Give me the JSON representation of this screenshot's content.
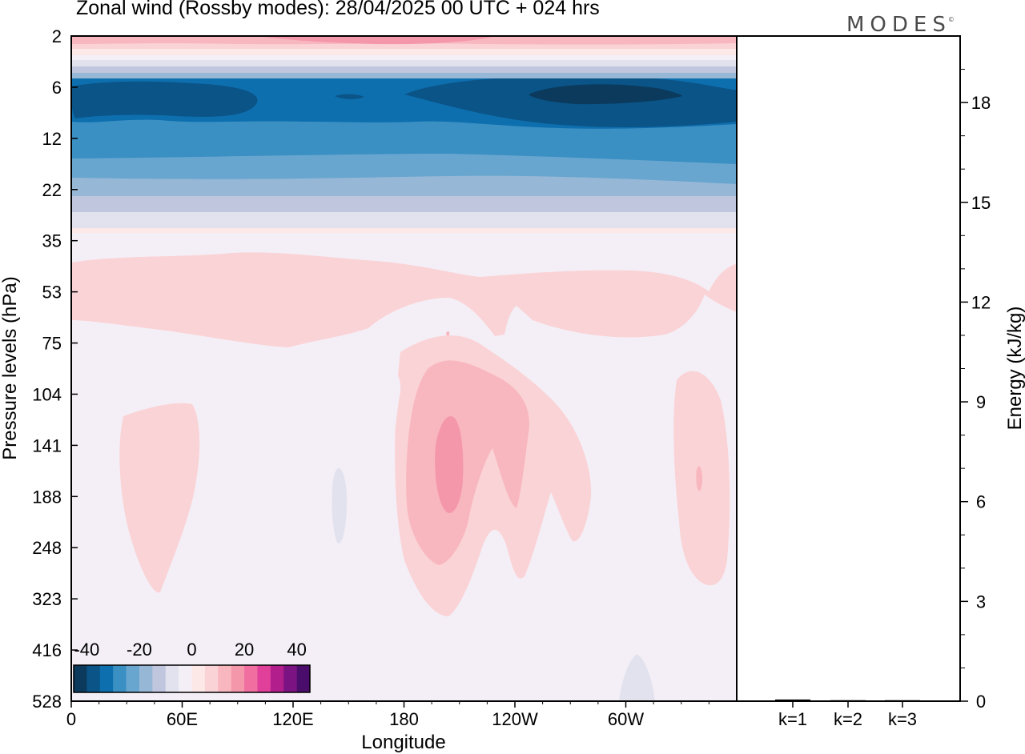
{
  "title": "Zonal wind (Rossby modes):  28/04/2025  00 UTC  + 024 hrs",
  "logo": "MODES",
  "logo_mark": "©",
  "chart_data": [
    {
      "type": "heatmap",
      "title": "Zonal wind (Rossby modes):  28/04/2025  00 UTC  + 024 hrs",
      "xlabel": "Longitude",
      "ylabel": "Pressure levels (hPa)",
      "x_ticks": [
        "0",
        "60E",
        "120E",
        "180",
        "120W",
        "60W"
      ],
      "y_ticks": [
        "2",
        "6",
        "12",
        "22",
        "35",
        "53",
        "75",
        "104",
        "141",
        "188",
        "248",
        "323",
        "416",
        "528"
      ],
      "colorbar": {
        "tick_labels": [
          "-40",
          "-20",
          "0",
          "20",
          "40"
        ],
        "range": [
          -45,
          45
        ],
        "interval": 5,
        "colors": [
          "#0b3a5c",
          "#0a5488",
          "#0e6fae",
          "#3a8fc3",
          "#68a6cf",
          "#97b7d6",
          "#c0c6de",
          "#e2e2ee",
          "#f4eff6",
          "#fde8e8",
          "#fad3d6",
          "#f8b7be",
          "#f597ab",
          "#f06fa0",
          "#e0409a",
          "#b21e8c",
          "#7c1382",
          "#4a0d6b"
        ]
      }
    },
    {
      "type": "bar",
      "ylabel": "Energy (kJ/kg)",
      "categories": [
        "k=1",
        "k=2",
        "k=3"
      ],
      "values": [
        0.05,
        0.03,
        0.03
      ],
      "ylim": [
        0,
        20
      ],
      "y_ticks": [
        "0",
        "3",
        "6",
        "9",
        "12",
        "15",
        "18"
      ]
    }
  ]
}
